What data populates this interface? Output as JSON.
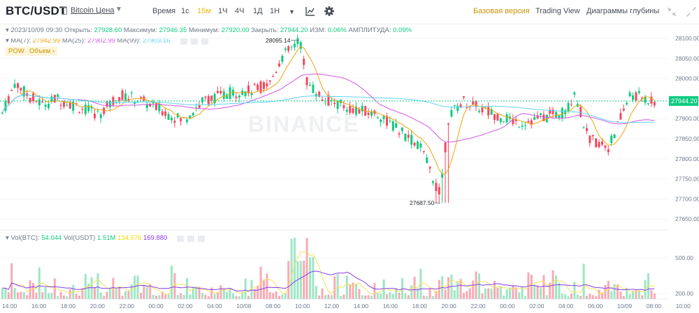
{
  "header": {
    "pair": "BTC/USDT",
    "coin_link": "Bitcoin Цена",
    "time_label": "Время",
    "intervals": [
      "1с",
      "15м",
      "1Ч",
      "4Ч",
      "1Д",
      "1Н"
    ],
    "active_interval": "15м",
    "view_basic": "Базовая версия",
    "view_tradingview": "Trading View",
    "view_depth": "Диаграммы глубины"
  },
  "ohlc": {
    "date": "2023/10/09 09:30",
    "open_label": "Открыть:",
    "open": "27928.60",
    "high_label": "Максимум:",
    "high": "27946.35",
    "low_label": "Минимум:",
    "low": "27920.00",
    "close_label": "Закрыть:",
    "close": "27944.20",
    "change_label": "ИЗМ:",
    "change": "0.06%",
    "amp_label": "АМПЛИТУДА:",
    "amp": "0.09%"
  },
  "ma": {
    "ma7_label": "MA(7):",
    "ma7": "27942.99",
    "ma25_label": "MA(25):",
    "ma25": "27902.99",
    "ma99_label": "MA(99):",
    "ma99": "27903.16"
  },
  "tags": {
    "pow": "POW",
    "volume": "Объем"
  },
  "vol": {
    "label": "Vol(BTC):",
    "btc": "54.044",
    "usdt_label": "Vol(USDT)",
    "usdt": "1.51M",
    "ma1": "134.576",
    "ma2": "169.880"
  },
  "watermark": "BINANCE",
  "price_axis": [
    "28100.00",
    "28050.00",
    "28000.00",
    "27950.00",
    "27900.00",
    "27850.00",
    "27800.00",
    "27750.00",
    "27700.00",
    "27650.00"
  ],
  "last_price": "27944.20",
  "high_marker": "28095.14",
  "low_marker": "27687.50",
  "vol_axis": [
    "500.00",
    "200.00"
  ],
  "time_axis": [
    "14:00",
    "16:00",
    "18:00",
    "20:00",
    "22:00",
    "00:00",
    "02:00",
    "04:00",
    "10/08",
    "08:00",
    "10:00",
    "12:00",
    "14:00",
    "16:00",
    "18:00",
    "20:00",
    "22:00",
    "00:00",
    "02:00",
    "04:00",
    "06:00",
    "10/09",
    "08:00",
    "10:00"
  ],
  "colors": {
    "up": "#0ecb81",
    "down": "#f6465d",
    "ma7": "#f0b90b",
    "ma25": "#d357e3",
    "ma99": "#5fd3f3",
    "accent": "#f0b90b"
  }
}
